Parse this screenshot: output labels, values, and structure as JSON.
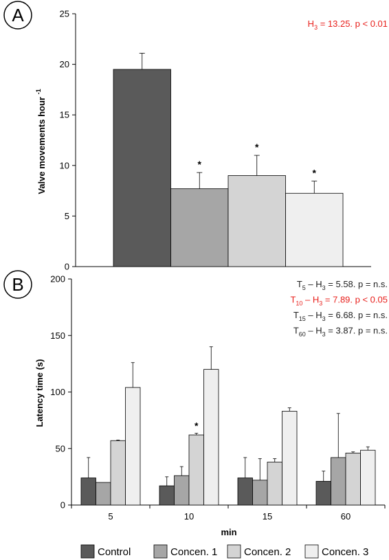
{
  "chart_data": [
    {
      "panel": "A",
      "type": "bar",
      "ylabel": "Valve movements hour",
      "ylabel_sup": "-1",
      "ylim": [
        0,
        25
      ],
      "yticks": [
        0,
        5,
        10,
        15,
        20,
        25
      ],
      "annotation": {
        "text": "H",
        "sub": "3",
        "rest": " = 13.25. p < 0.01",
        "color": "#e8201c"
      },
      "categories": [
        "Control",
        "Concen. 1",
        "Concen. 2",
        "Concen. 3"
      ],
      "values": [
        19.5,
        7.7,
        9.0,
        7.25
      ],
      "errors": [
        1.6,
        1.6,
        2.0,
        1.2
      ],
      "significance": [
        "",
        "*",
        "*",
        "*"
      ],
      "colors": [
        "#5a5a5a",
        "#a6a6a6",
        "#d4d4d4",
        "#efefef"
      ]
    },
    {
      "panel": "B",
      "type": "bar",
      "xlabel": "min",
      "ylabel": "Latency time (s)",
      "ylim": [
        0,
        200
      ],
      "yticks": [
        0,
        50,
        100,
        150,
        200
      ],
      "categories": [
        "5",
        "10",
        "15",
        "60"
      ],
      "series": [
        {
          "name": "Control",
          "color": "#5a5a5a",
          "values": [
            24,
            17,
            24,
            21
          ],
          "errors": [
            18,
            8,
            18,
            9
          ]
        },
        {
          "name": "Concen. 1",
          "color": "#a6a6a6",
          "values": [
            20,
            26,
            22,
            42
          ],
          "errors": [
            0,
            8,
            19,
            39
          ]
        },
        {
          "name": "Concen. 2",
          "color": "#d4d4d4",
          "values": [
            57,
            62,
            38,
            46
          ],
          "errors": [
            0.5,
            1.5,
            3,
            1
          ]
        },
        {
          "name": "Concen. 3",
          "color": "#efefef",
          "values": [
            104,
            120,
            83,
            48.5
          ],
          "errors": [
            22,
            20,
            3,
            3
          ]
        }
      ],
      "significance_marks": [
        {
          "category": "10",
          "series": "Concen. 2",
          "text": "*"
        }
      ],
      "annotations": [
        {
          "text": "T",
          "sub1": "5",
          "mid": " – H",
          "sub2": "3",
          "rest": " = 5.58. p = n.s.",
          "color": "#222222"
        },
        {
          "text": "T",
          "sub1": "10",
          "mid": " – H",
          "sub2": "3",
          "rest": " = 7.89. p < 0.05",
          "color": "#e8201c"
        },
        {
          "text": "T",
          "sub1": "15",
          "mid": " – H",
          "sub2": "3",
          "rest": " = 6.68. p = n.s.",
          "color": "#222222"
        },
        {
          "text": "T",
          "sub1": "60",
          "mid": " – H",
          "sub2": "3",
          "rest": " = 3.87. p = n.s.",
          "color": "#222222"
        }
      ]
    }
  ],
  "legend": [
    "Control",
    "Concen. 1",
    "Concen. 2",
    "Concen. 3"
  ]
}
